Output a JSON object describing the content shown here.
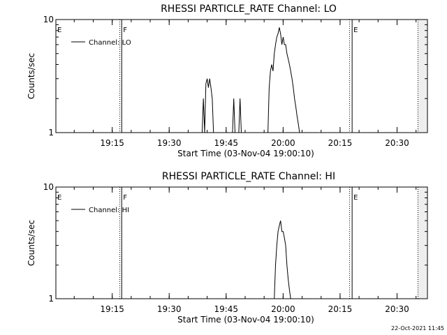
{
  "chart_data": [
    {
      "type": "line",
      "title": "RHESSI PARTICLE_RATE Channel: LO",
      "xlabel": "Start Time (03-Nov-04 19:00:10)",
      "ylabel": "Counts/sec",
      "y_scale": "log",
      "ylim": [
        1,
        10
      ],
      "y_ticks": [
        {
          "v": 1,
          "label": "1"
        },
        {
          "v": 10,
          "label": "10"
        }
      ],
      "xlim": [
        "19:00:10",
        "20:38:00"
      ],
      "x_ticks": [
        {
          "t": "19:15",
          "label": "19:15"
        },
        {
          "t": "19:30",
          "label": "19:30"
        },
        {
          "t": "19:45",
          "label": "19:45"
        },
        {
          "t": "20:00",
          "label": "20:00"
        },
        {
          "t": "20:15",
          "label": "20:15"
        },
        {
          "t": "20:30",
          "label": "20:30"
        }
      ],
      "legend": {
        "position": "top-left",
        "entries": [
          "Channel: LO"
        ]
      },
      "flags": [
        {
          "t": "19:00:10",
          "label": "E"
        },
        {
          "t": "19:17:30",
          "label": "F"
        },
        {
          "t": "20:18:10",
          "label": "E"
        }
      ],
      "vlines_solid": [
        "19:17:30",
        "20:18:10"
      ],
      "vlines_dotted": [
        "19:17:00",
        "20:17:30",
        "20:35:30"
      ],
      "shaded_after": "20:35:30",
      "series": [
        {
          "name": "Channel: LO",
          "x": [
            "19:38:40",
            "19:39:00",
            "19:39:20",
            "19:39:40",
            "19:40:00",
            "19:40:20",
            "19:40:40",
            "19:41:00",
            "19:41:20",
            "19:41:40",
            "19:42:00",
            "19:42:20",
            "19:42:40",
            "19:43:00",
            "19:46:40",
            "19:47:00",
            "19:47:20",
            "19:47:40",
            "19:48:00",
            "19:48:20",
            "19:48:40",
            "19:49:00",
            "19:49:20",
            "19:49:40",
            "19:50:00",
            "19:56:00",
            "19:56:20",
            "19:56:40",
            "19:57:00",
            "19:57:20",
            "19:57:40",
            "19:58:00",
            "19:58:20",
            "19:58:40",
            "19:59:00",
            "19:59:20",
            "19:59:40",
            "20:00:00",
            "20:00:20",
            "20:00:40",
            "20:01:00",
            "20:01:20",
            "20:01:40",
            "20:02:00",
            "20:02:20",
            "20:02:40",
            "20:03:00",
            "20:03:20",
            "20:03:40",
            "20:04:00",
            "20:04:20",
            "20:04:40",
            "20:05:00",
            "20:05:20"
          ],
          "y": [
            1,
            2.0,
            1,
            2.7,
            3.0,
            2.5,
            3.0,
            2.5,
            2.0,
            1,
            null,
            null,
            null,
            null,
            1,
            2.0,
            1,
            1,
            1,
            1,
            2.0,
            1,
            null,
            null,
            null,
            1,
            2.5,
            3.5,
            4.0,
            3.5,
            5.0,
            6.0,
            7.0,
            7.5,
            8.5,
            7.5,
            6.0,
            7.0,
            6.0,
            6.0,
            5.0,
            4.5,
            4.0,
            3.5,
            3.0,
            2.5,
            2.0,
            1.7,
            1.4,
            1.2,
            1,
            null,
            null,
            null
          ]
        }
      ]
    },
    {
      "type": "line",
      "title": "RHESSI PARTICLE_RATE Channel: HI",
      "xlabel": "Start Time (03-Nov-04 19:00:10)",
      "ylabel": "Counts/sec",
      "y_scale": "log",
      "ylim": [
        1,
        10
      ],
      "y_ticks": [
        {
          "v": 1,
          "label": "1"
        },
        {
          "v": 10,
          "label": "10"
        }
      ],
      "xlim": [
        "19:00:10",
        "20:38:00"
      ],
      "x_ticks": [
        {
          "t": "19:15",
          "label": "19:15"
        },
        {
          "t": "19:30",
          "label": "19:30"
        },
        {
          "t": "19:45",
          "label": "19:45"
        },
        {
          "t": "20:00",
          "label": "20:00"
        },
        {
          "t": "20:15",
          "label": "20:15"
        },
        {
          "t": "20:30",
          "label": "20:30"
        }
      ],
      "legend": {
        "position": "top-left",
        "entries": [
          "Channel: HI"
        ]
      },
      "flags": [
        {
          "t": "19:00:10",
          "label": "E"
        },
        {
          "t": "19:17:30",
          "label": "F"
        },
        {
          "t": "20:18:10",
          "label": "E"
        }
      ],
      "vlines_solid": [
        "19:17:30",
        "20:18:10"
      ],
      "vlines_dotted": [
        "19:17:00",
        "20:17:30",
        "20:35:30"
      ],
      "shaded_after": "20:35:30",
      "series": [
        {
          "name": "Channel: HI",
          "x": [
            "19:57:40",
            "19:58:00",
            "19:58:20",
            "19:58:40",
            "19:59:00",
            "19:59:20",
            "19:59:40",
            "20:00:00",
            "20:00:20",
            "20:00:40",
            "20:01:00",
            "20:01:20",
            "20:01:40",
            "20:02:00"
          ],
          "y": [
            1,
            2.0,
            3.0,
            4.0,
            4.5,
            5.0,
            4.0,
            4.0,
            3.5,
            3.0,
            2.0,
            1.5,
            1.2,
            1
          ]
        }
      ]
    }
  ],
  "timestamp": "22-Oct-2021 11:45"
}
